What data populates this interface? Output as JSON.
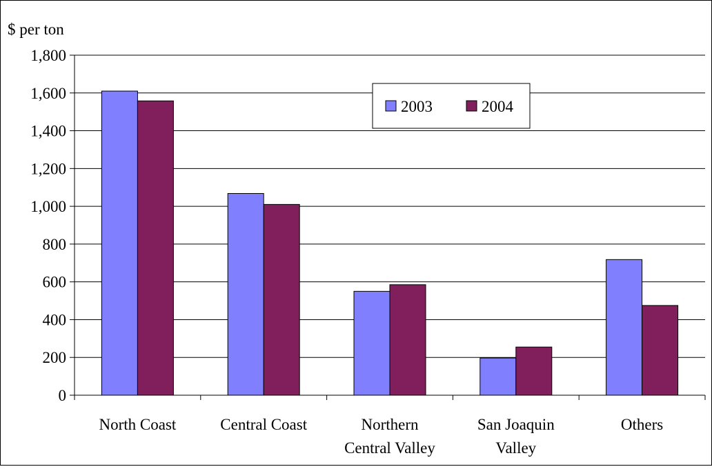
{
  "chart_data": {
    "type": "bar",
    "ylabel": "$ per ton",
    "categories": [
      "North Coast",
      "Central Coast",
      "Northern Central Valley",
      "San Joaquin Valley",
      "Others"
    ],
    "category_lines": [
      [
        "North Coast"
      ],
      [
        "Central Coast"
      ],
      [
        "Northern",
        "Central Valley"
      ],
      [
        "San Joaquin",
        "Valley"
      ],
      [
        "Others"
      ]
    ],
    "series": [
      {
        "name": "2003",
        "values": [
          1610,
          1068,
          550,
          197,
          718
        ],
        "color": "#8080ff"
      },
      {
        "name": "2004",
        "values": [
          1558,
          1010,
          585,
          255,
          475
        ],
        "color": "#801f5c"
      }
    ],
    "ylim": [
      0,
      1800
    ],
    "yticks": [
      0,
      200,
      400,
      600,
      800,
      1000,
      1200,
      1400,
      1600,
      1800
    ],
    "ytick_labels": [
      "0",
      "200",
      "400",
      "600",
      "800",
      "1,000",
      "1,200",
      "1,400",
      "1,600",
      "1,800"
    ],
    "grid": true,
    "legend_position": "top-center"
  }
}
